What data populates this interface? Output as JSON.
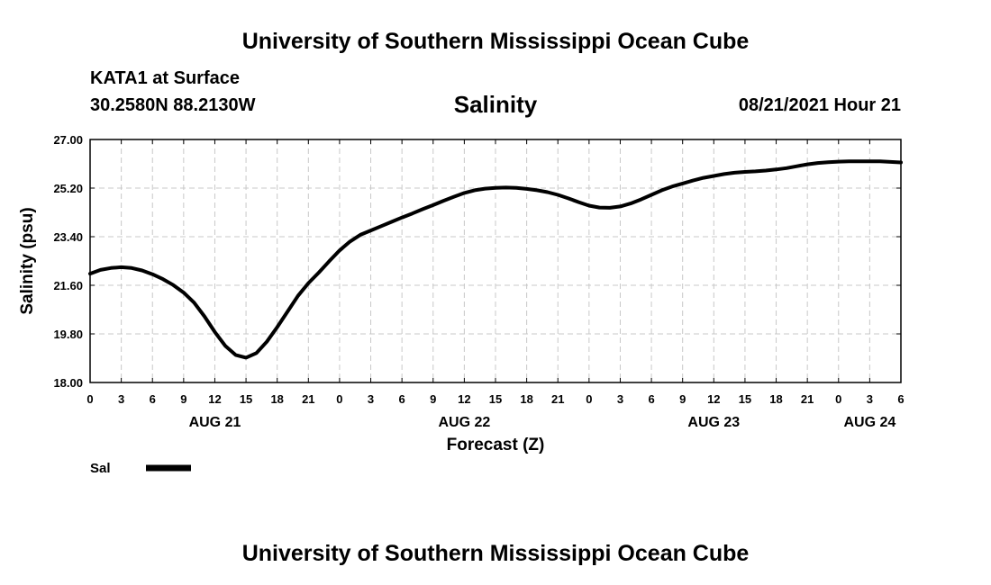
{
  "page": {
    "title_top": "University of Southern Mississippi Ocean Cube",
    "title_bottom": "University of Southern Mississippi Ocean Cube",
    "station": "KATA1 at Surface",
    "coords": "30.2580N  88.2130W",
    "timestamp": "08/21/2021 Hour 21"
  },
  "chart_data": {
    "type": "line",
    "title": "Salinity",
    "xlabel": "Forecast (Z)",
    "ylabel": "Salinity (psu)",
    "xlim": [
      0,
      78
    ],
    "ylim": [
      18.0,
      27.0
    ],
    "grid": true,
    "x_tick_labels": [
      "0",
      "3",
      "6",
      "9",
      "12",
      "15",
      "18",
      "21",
      "0",
      "3",
      "6",
      "9",
      "12",
      "15",
      "18",
      "21",
      "0",
      "3",
      "6",
      "9",
      "12",
      "15",
      "18",
      "21",
      "0",
      "3",
      "6"
    ],
    "y_tick_labels": [
      "18.00",
      "19.80",
      "21.60",
      "23.40",
      "25.20",
      "27.00"
    ],
    "date_labels": [
      {
        "label": "AUG 21",
        "x": 12
      },
      {
        "label": "AUG 22",
        "x": 36
      },
      {
        "label": "AUG 23",
        "x": 60
      },
      {
        "label": "AUG 24",
        "x": 75
      }
    ],
    "legend": {
      "position": "bottom-left"
    },
    "series": [
      {
        "name": "Sal",
        "x": [
          0,
          1,
          2,
          3,
          4,
          5,
          6,
          7,
          8,
          9,
          10,
          11,
          12,
          13,
          14,
          15,
          16,
          17,
          18,
          19,
          20,
          21,
          22,
          23,
          24,
          25,
          26,
          27,
          28,
          29,
          30,
          31,
          32,
          33,
          34,
          35,
          36,
          37,
          38,
          39,
          40,
          41,
          42,
          43,
          44,
          45,
          46,
          47,
          48,
          49,
          50,
          51,
          52,
          53,
          54,
          55,
          56,
          57,
          58,
          59,
          60,
          61,
          62,
          63,
          64,
          65,
          66,
          67,
          68,
          69,
          70,
          71,
          72,
          73,
          74,
          75,
          76,
          77,
          78
        ],
        "values": [
          22.03,
          22.17,
          22.24,
          22.27,
          22.24,
          22.15,
          22.01,
          21.83,
          21.61,
          21.33,
          20.96,
          20.45,
          19.87,
          19.36,
          19.02,
          18.92,
          19.09,
          19.51,
          20.05,
          20.63,
          21.21,
          21.68,
          22.07,
          22.49,
          22.89,
          23.22,
          23.47,
          23.63,
          23.79,
          23.95,
          24.11,
          24.26,
          24.42,
          24.57,
          24.73,
          24.88,
          25.02,
          25.12,
          25.18,
          25.21,
          25.22,
          25.21,
          25.17,
          25.12,
          25.05,
          24.95,
          24.82,
          24.68,
          24.55,
          24.48,
          24.47,
          24.52,
          24.63,
          24.78,
          24.95,
          25.12,
          25.26,
          25.37,
          25.48,
          25.58,
          25.65,
          25.72,
          25.77,
          25.8,
          25.82,
          25.85,
          25.89,
          25.94,
          26.01,
          26.08,
          26.13,
          26.16,
          26.18,
          26.19,
          26.19,
          26.19,
          26.19,
          26.17,
          26.15
        ]
      }
    ]
  }
}
